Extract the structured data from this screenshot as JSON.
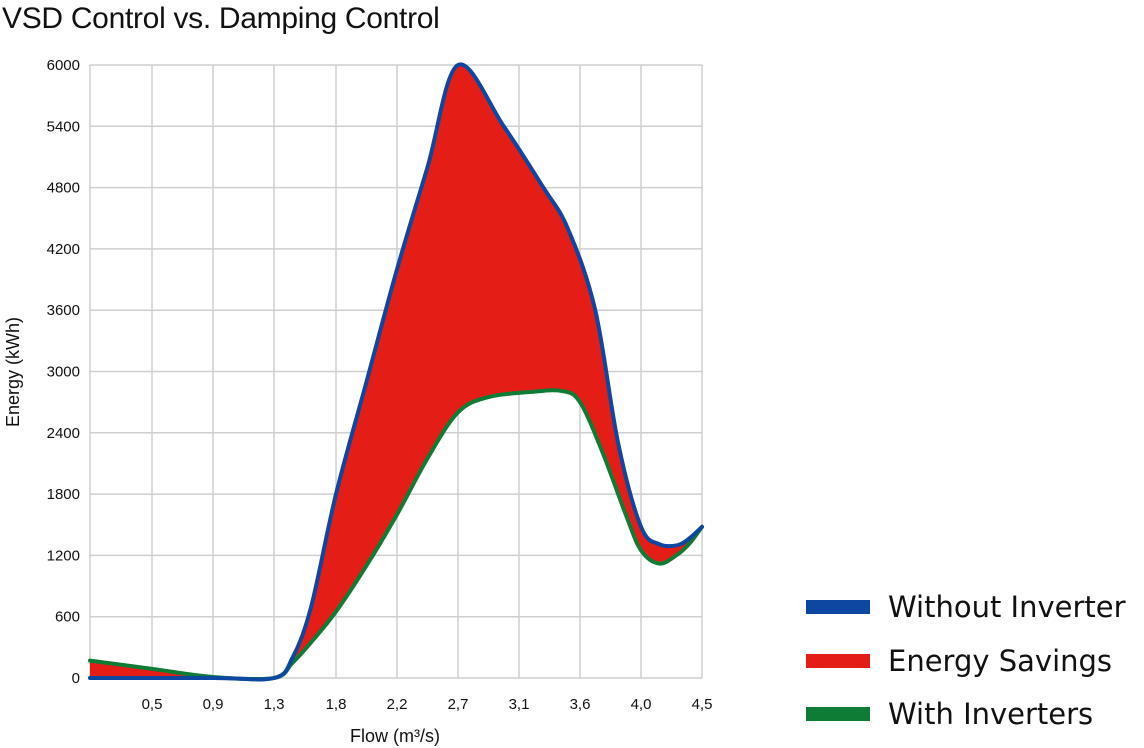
{
  "chart_data": {
    "type": "area",
    "title": "VSD Control vs. Damping Control",
    "xlabel": "Flow (m³/s)",
    "ylabel": "Energy (kWh)",
    "x_ticks": [
      "0,5",
      "0,9",
      "1,3",
      "1,8",
      "2,2",
      "2,7",
      "3,1",
      "3,6",
      "4,0",
      "4,5"
    ],
    "y_ticks": [
      0,
      600,
      1200,
      1800,
      2400,
      3000,
      3600,
      4200,
      4800,
      5400,
      6000
    ],
    "ylim": [
      0,
      6000
    ],
    "grid": true,
    "legend_position": "right",
    "series": [
      {
        "name": "Without Inverter",
        "color": "#0d47a1",
        "x": [
          0.0,
          0.9,
          1.3,
          1.45,
          1.6,
          1.8,
          2.0,
          2.2,
          2.45,
          2.7,
          3.0,
          3.3,
          3.5,
          3.7,
          3.85,
          4.0,
          4.15,
          4.3,
          4.4,
          4.5
        ],
        "values": [
          0,
          0,
          0,
          200,
          700,
          1800,
          2900,
          4000,
          5000,
          6000,
          5400,
          4800,
          4400,
          3600,
          2300,
          1480,
          1310,
          1300,
          1370,
          1480
        ]
      },
      {
        "name": "Energy Savings",
        "color": "#e41e16"
      },
      {
        "name": "With Inverters",
        "color": "#0f7c35",
        "x": [
          0.0,
          0.45,
          0.9,
          1.3,
          1.45,
          1.6,
          1.8,
          2.0,
          2.2,
          2.45,
          2.7,
          2.9,
          3.2,
          3.45,
          3.6,
          3.75,
          3.9,
          4.0,
          4.15,
          4.3,
          4.4,
          4.5
        ],
        "values": [
          170,
          90,
          10,
          0,
          150,
          350,
          650,
          1100,
          1600,
          2150,
          2600,
          2750,
          2800,
          2810,
          2700,
          2200,
          1600,
          1250,
          1120,
          1210,
          1320,
          1480
        ]
      }
    ]
  }
}
